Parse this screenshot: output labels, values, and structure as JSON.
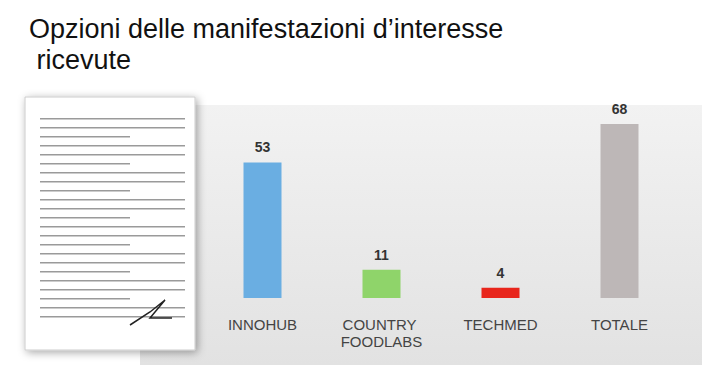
{
  "chart_data": {
    "type": "bar",
    "title": "Opzioni delle manifestazioni d’interesse ricevute",
    "categories": [
      "INNOHUB",
      "COUNTRY FOODLABS",
      "TECHMED",
      "TOTALE"
    ],
    "values": [
      53,
      11,
      4,
      68
    ],
    "colors": [
      "#6aaee2",
      "#8fd46a",
      "#e8261c",
      "#bdb7b7"
    ],
    "ylim": [
      0,
      70
    ],
    "yticks": [
      0,
      70
    ],
    "grid": false,
    "data_labels": true,
    "tick_labels": "x"
  }
}
